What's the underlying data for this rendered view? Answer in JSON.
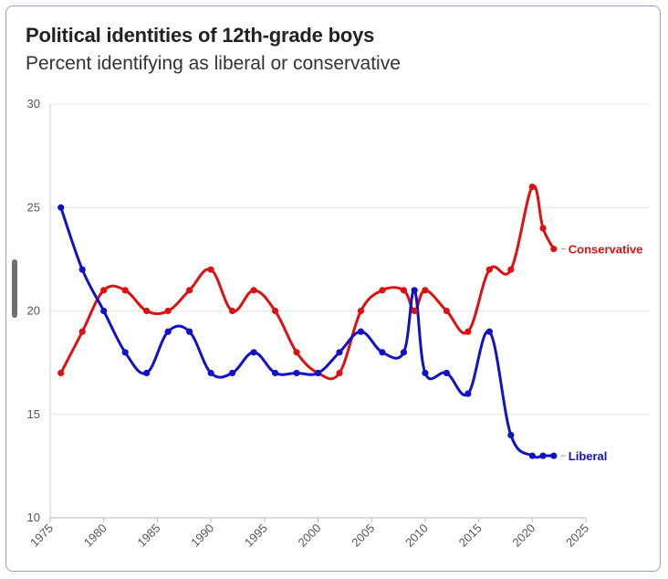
{
  "header": {
    "title": "Political identities of 12th-grade boys",
    "subtitle": "Percent identifying as liberal or conservative"
  },
  "chart_data": {
    "type": "line",
    "title": "Political identities of 12th-grade boys",
    "subtitle": "Percent identifying as liberal or conservative",
    "xlabel": "",
    "ylabel": "",
    "xlim": [
      1975,
      2025
    ],
    "ylim": [
      10,
      30
    ],
    "x_ticks": [
      "1975",
      "1980",
      "1985",
      "1990",
      "1995",
      "2000",
      "2005",
      "2010",
      "2015",
      "2020",
      "2025"
    ],
    "y_ticks": [
      "10",
      "15",
      "20",
      "25",
      "30"
    ],
    "grid": true,
    "legend": "direct labels at line ends",
    "series": [
      {
        "name": "Conservative",
        "color": "#dd1111",
        "x": [
          1976,
          1978,
          1980,
          1982,
          1984,
          1986,
          1988,
          1990,
          1992,
          1994,
          1996,
          1998,
          2000,
          2002,
          2004,
          2006,
          2008,
          2009,
          2010,
          2012,
          2014,
          2016,
          2018,
          2020,
          2021,
          2022
        ],
        "values": [
          17,
          19,
          21,
          21,
          20,
          20,
          21,
          22,
          20,
          21,
          20,
          18,
          17,
          17,
          20,
          21,
          21,
          20,
          21,
          20,
          19,
          22,
          22,
          26,
          24,
          23
        ]
      },
      {
        "name": "Liberal",
        "color": "#1111c8",
        "x": [
          1976,
          1978,
          1980,
          1982,
          1984,
          1986,
          1988,
          1990,
          1992,
          1994,
          1996,
          1998,
          2000,
          2002,
          2004,
          2006,
          2008,
          2009,
          2010,
          2012,
          2014,
          2016,
          2018,
          2020,
          2021,
          2022
        ],
        "values": [
          25,
          22,
          20,
          18,
          17,
          19,
          19,
          17,
          17,
          18,
          17,
          17,
          17,
          18,
          19,
          18,
          18,
          21,
          17,
          17,
          16,
          19,
          14,
          13,
          13,
          13
        ]
      }
    ]
  }
}
